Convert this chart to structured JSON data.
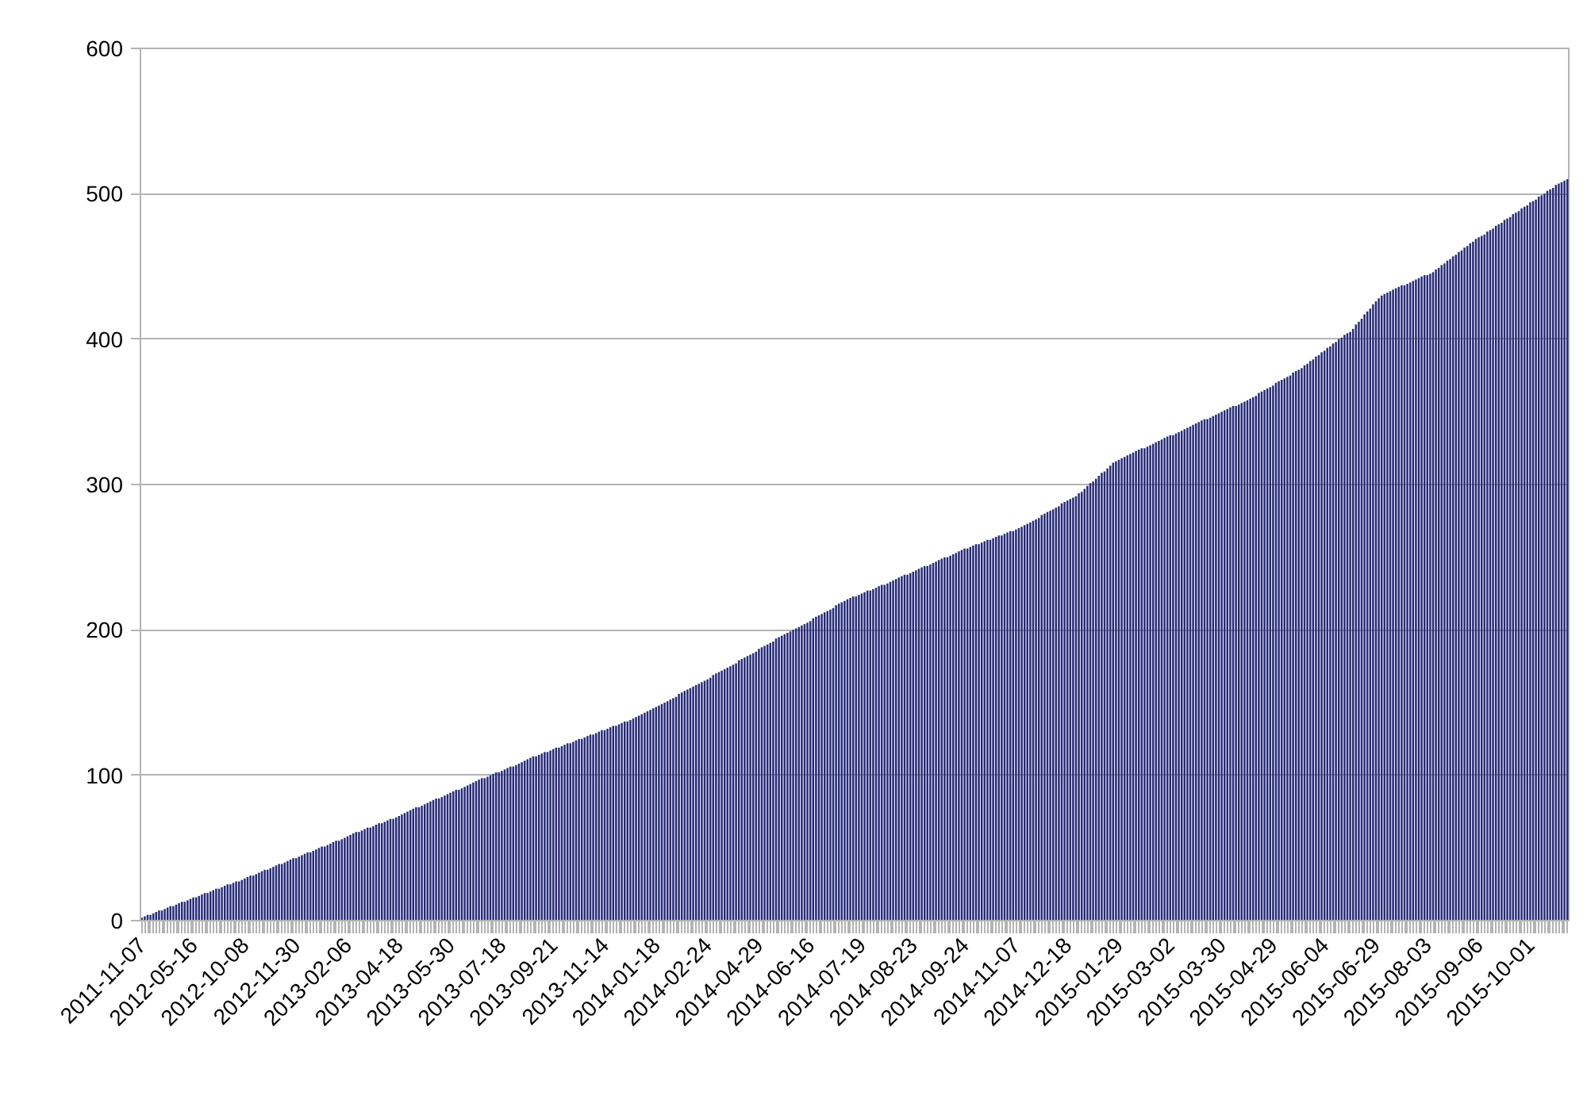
{
  "chart_data": {
    "type": "bar",
    "grid": "y",
    "ylim": [
      0,
      600
    ],
    "yticks": [
      0,
      100,
      200,
      300,
      400,
      500,
      600
    ],
    "categories": [
      "2011-11-07",
      null,
      null,
      null,
      null,
      null,
      null,
      null,
      null,
      null,
      null,
      null,
      null,
      null,
      null,
      null,
      null,
      null,
      "2012-05-16",
      null,
      null,
      null,
      null,
      null,
      null,
      null,
      null,
      null,
      null,
      null,
      null,
      null,
      null,
      null,
      null,
      null,
      "2012-10-08",
      null,
      null,
      null,
      null,
      null,
      null,
      null,
      null,
      null,
      null,
      null,
      null,
      null,
      null,
      null,
      null,
      null,
      "2012-11-30",
      null,
      null,
      null,
      null,
      null,
      null,
      null,
      null,
      null,
      null,
      null,
      null,
      null,
      null,
      null,
      null,
      null,
      "2013-02-06",
      null,
      null,
      null,
      null,
      null,
      null,
      null,
      null,
      null,
      null,
      null,
      null,
      null,
      null,
      null,
      null,
      null,
      "2013-04-18",
      null,
      null,
      null,
      null,
      null,
      null,
      null,
      null,
      null,
      null,
      null,
      null,
      null,
      null,
      null,
      null,
      null,
      "2013-05-30",
      null,
      null,
      null,
      null,
      null,
      null,
      null,
      null,
      null,
      null,
      null,
      null,
      null,
      null,
      null,
      null,
      null,
      "2013-07-18",
      null,
      null,
      null,
      null,
      null,
      null,
      null,
      null,
      null,
      null,
      null,
      null,
      null,
      null,
      null,
      null,
      null,
      "2013-09-21",
      null,
      null,
      null,
      null,
      null,
      null,
      null,
      null,
      null,
      null,
      null,
      null,
      null,
      null,
      null,
      null,
      null,
      "2013-11-14",
      null,
      null,
      null,
      null,
      null,
      null,
      null,
      null,
      null,
      null,
      null,
      null,
      null,
      null,
      null,
      null,
      null,
      "2014-01-18",
      null,
      null,
      null,
      null,
      null,
      null,
      null,
      null,
      null,
      null,
      null,
      null,
      null,
      null,
      null,
      null,
      null,
      "2014-02-24",
      null,
      null,
      null,
      null,
      null,
      null,
      null,
      null,
      null,
      null,
      null,
      null,
      null,
      null,
      null,
      null,
      null,
      "2014-04-29",
      null,
      null,
      null,
      null,
      null,
      null,
      null,
      null,
      null,
      null,
      null,
      null,
      null,
      null,
      null,
      null,
      null,
      "2014-06-16",
      null,
      null,
      null,
      null,
      null,
      null,
      null,
      null,
      null,
      null,
      null,
      null,
      null,
      null,
      null,
      null,
      null,
      "2014-07-19",
      null,
      null,
      null,
      null,
      null,
      null,
      null,
      null,
      null,
      null,
      null,
      null,
      null,
      null,
      null,
      null,
      null,
      "2014-08-23",
      null,
      null,
      null,
      null,
      null,
      null,
      null,
      null,
      null,
      null,
      null,
      null,
      null,
      null,
      null,
      null,
      null,
      "2014-09-24",
      null,
      null,
      null,
      null,
      null,
      null,
      null,
      null,
      null,
      null,
      null,
      null,
      null,
      null,
      null,
      null,
      null,
      "2014-11-07",
      null,
      null,
      null,
      null,
      null,
      null,
      null,
      null,
      null,
      null,
      null,
      null,
      null,
      null,
      null,
      null,
      null,
      "2014-12-18",
      null,
      null,
      null,
      null,
      null,
      null,
      null,
      null,
      null,
      null,
      null,
      null,
      null,
      null,
      null,
      null,
      null,
      "2015-01-29",
      null,
      null,
      null,
      null,
      null,
      null,
      null,
      null,
      null,
      null,
      null,
      null,
      null,
      null,
      null,
      null,
      null,
      "2015-03-02",
      null,
      null,
      null,
      null,
      null,
      null,
      null,
      null,
      null,
      null,
      null,
      null,
      null,
      null,
      null,
      null,
      null,
      "2015-03-30",
      null,
      null,
      null,
      null,
      null,
      null,
      null,
      null,
      null,
      null,
      null,
      null,
      null,
      null,
      null,
      null,
      null,
      "2015-04-29",
      null,
      null,
      null,
      null,
      null,
      null,
      null,
      null,
      null,
      null,
      null,
      null,
      null,
      null,
      null,
      null,
      null,
      "2015-06-04",
      null,
      null,
      null,
      null,
      null,
      null,
      null,
      null,
      null,
      null,
      null,
      null,
      null,
      null,
      null,
      null,
      null,
      "2015-06-29",
      null,
      null,
      null,
      null,
      null,
      null,
      null,
      null,
      null,
      null,
      null,
      null,
      null,
      null,
      null,
      null,
      null,
      "2015-08-03",
      null,
      null,
      null,
      null,
      null,
      null,
      null,
      null,
      null,
      null,
      null,
      null,
      null,
      null,
      null,
      null,
      null,
      "2015-09-06",
      null,
      null,
      null,
      null,
      null,
      null,
      null,
      null,
      null,
      null,
      null,
      null,
      null,
      null,
      null,
      null,
      null,
      "2015-10-01",
      null,
      null,
      null,
      null,
      null,
      null,
      null,
      null,
      null,
      null,
      null,
      null,
      null
    ],
    "series": [
      {
        "color": "#262b78",
        "values": [
          2,
          3,
          4,
          4,
          5,
          6,
          7,
          7,
          8,
          9,
          10,
          10,
          11,
          12,
          13,
          13,
          14,
          15,
          16,
          16,
          17,
          18,
          19,
          19,
          20,
          21,
          22,
          22,
          23,
          24,
          25,
          25,
          26,
          27,
          27,
          28,
          29,
          30,
          31,
          31,
          32,
          33,
          34,
          35,
          35,
          36,
          37,
          38,
          39,
          39,
          40,
          41,
          42,
          43,
          43,
          44,
          45,
          46,
          47,
          47,
          48,
          49,
          50,
          51,
          51,
          52,
          53,
          54,
          55,
          55,
          56,
          57,
          58,
          59,
          60,
          61,
          61,
          62,
          63,
          64,
          64,
          65,
          66,
          67,
          67,
          68,
          69,
          70,
          70,
          71,
          72,
          73,
          74,
          75,
          76,
          77,
          78,
          78,
          79,
          80,
          81,
          82,
          83,
          84,
          84,
          85,
          86,
          87,
          88,
          89,
          90,
          90,
          91,
          92,
          93,
          94,
          95,
          96,
          97,
          98,
          98,
          99,
          100,
          101,
          102,
          102,
          103,
          104,
          105,
          106,
          106,
          107,
          108,
          109,
          110,
          111,
          112,
          113,
          113,
          114,
          115,
          116,
          116,
          117,
          118,
          119,
          119,
          120,
          121,
          122,
          122,
          123,
          124,
          125,
          125,
          126,
          127,
          128,
          128,
          129,
          130,
          131,
          131,
          132,
          133,
          134,
          134,
          135,
          136,
          137,
          137,
          138,
          139,
          140,
          141,
          142,
          143,
          144,
          145,
          146,
          147,
          148,
          149,
          150,
          151,
          152,
          153,
          154,
          156,
          157,
          158,
          159,
          160,
          161,
          162,
          163,
          164,
          165,
          166,
          167,
          169,
          170,
          171,
          172,
          173,
          174,
          175,
          176,
          177,
          179,
          180,
          181,
          182,
          183,
          184,
          185,
          187,
          188,
          189,
          190,
          191,
          192,
          194,
          195,
          196,
          197,
          198,
          199,
          200,
          201,
          202,
          203,
          204,
          205,
          206,
          208,
          209,
          210,
          211,
          212,
          213,
          214,
          215,
          217,
          218,
          219,
          220,
          221,
          222,
          223,
          223,
          224,
          225,
          226,
          227,
          227,
          228,
          229,
          230,
          231,
          231,
          232,
          233,
          234,
          235,
          236,
          237,
          238,
          238,
          239,
          240,
          241,
          242,
          243,
          244,
          244,
          245,
          246,
          247,
          248,
          249,
          250,
          250,
          251,
          252,
          253,
          254,
          255,
          256,
          256,
          257,
          258,
          259,
          259,
          260,
          261,
          262,
          262,
          263,
          264,
          265,
          265,
          266,
          267,
          268,
          268,
          269,
          270,
          271,
          272,
          273,
          274,
          275,
          276,
          277,
          279,
          280,
          281,
          282,
          283,
          284,
          285,
          287,
          288,
          289,
          290,
          291,
          292,
          294,
          295,
          297,
          299,
          301,
          302,
          304,
          306,
          308,
          309,
          311,
          313,
          315,
          316,
          317,
          318,
          319,
          320,
          321,
          322,
          323,
          324,
          325,
          325,
          326,
          327,
          328,
          329,
          330,
          331,
          332,
          333,
          334,
          334,
          335,
          336,
          337,
          338,
          339,
          340,
          341,
          342,
          343,
          344,
          345,
          345,
          346,
          347,
          348,
          349,
          350,
          351,
          352,
          353,
          354,
          354,
          355,
          356,
          357,
          358,
          359,
          360,
          361,
          363,
          364,
          365,
          366,
          367,
          368,
          370,
          371,
          372,
          373,
          374,
          375,
          377,
          378,
          379,
          380,
          382,
          383,
          385,
          386,
          388,
          389,
          391,
          392,
          394,
          395,
          397,
          398,
          400,
          401,
          403,
          404,
          405,
          407,
          410,
          412,
          414,
          417,
          419,
          421,
          424,
          426,
          428,
          430,
          431,
          432,
          433,
          434,
          435,
          436,
          437,
          437,
          438,
          439,
          440,
          441,
          442,
          443,
          444,
          444,
          445,
          446,
          448,
          449,
          451,
          452,
          454,
          455,
          457,
          458,
          460,
          461,
          463,
          464,
          466,
          467,
          469,
          470,
          471,
          472,
          474,
          475,
          476,
          478,
          479,
          480,
          482,
          483,
          484,
          486,
          487,
          488,
          490,
          491,
          492,
          494,
          495,
          496,
          498,
          499,
          500,
          502,
          503,
          504,
          506,
          507,
          508,
          509,
          510
        ]
      }
    ]
  }
}
